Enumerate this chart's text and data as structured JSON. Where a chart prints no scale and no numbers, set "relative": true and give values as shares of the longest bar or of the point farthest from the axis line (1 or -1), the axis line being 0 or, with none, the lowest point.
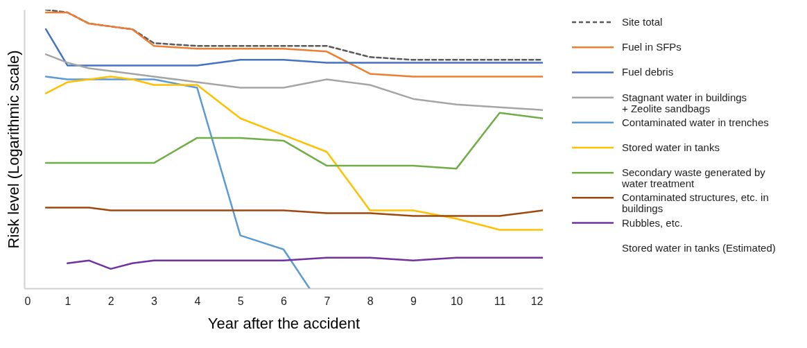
{
  "chart_data": {
    "type": "line",
    "relative": true,
    "xlabel": "Year after the accident",
    "ylabel": "Risk level (Logarithmic scale)",
    "x": [
      0.5,
      1,
      1.5,
      2,
      2.5,
      3,
      4,
      5,
      6,
      7,
      8,
      9,
      10,
      11,
      12
    ],
    "xlim": [
      0,
      12
    ],
    "xticks": [
      0,
      1,
      2,
      3,
      4,
      5,
      6,
      7,
      8,
      9,
      10,
      11,
      12
    ],
    "grid": false,
    "legend": "right",
    "marker": "none",
    "annotations": [
      "Stored water in tanks (Estimated)"
    ],
    "series": [
      {
        "name": "Site total",
        "color": "#595959",
        "line_style": "dashed",
        "values": [
          1.0,
          0.99,
          0.95,
          0.94,
          0.93,
          0.88,
          0.87,
          0.87,
          0.87,
          0.87,
          0.83,
          0.82,
          0.82,
          0.82,
          0.82
        ]
      },
      {
        "name": "Fuel in SFPs",
        "color": "#ed7d31",
        "values": [
          0.99,
          0.99,
          0.95,
          0.94,
          0.93,
          0.87,
          0.86,
          0.86,
          0.86,
          0.85,
          0.77,
          0.76,
          0.76,
          0.76,
          0.76
        ]
      },
      {
        "name": "Fuel debris",
        "color": "#4472c4",
        "values": [
          0.93,
          0.8,
          0.8,
          0.8,
          0.8,
          0.8,
          0.8,
          0.82,
          0.82,
          0.81,
          0.81,
          0.81,
          0.81,
          0.81,
          0.81
        ]
      },
      {
        "name": "Stagnant water in buildings\n+ Zeolite sandbags",
        "color": "#a5a5a5",
        "values": [
          0.84,
          0.81,
          0.79,
          0.78,
          0.77,
          0.76,
          0.74,
          0.72,
          0.72,
          0.75,
          0.73,
          0.68,
          0.66,
          0.65,
          0.64
        ]
      },
      {
        "name": "Contaminated water in trenches",
        "color": "#5b9bd5",
        "x": [
          0.5,
          1,
          2,
          3,
          4,
          5,
          6,
          6.6
        ],
        "values": [
          0.76,
          0.75,
          0.75,
          0.75,
          0.72,
          0.19,
          0.14,
          0
        ]
      },
      {
        "name": "Stored water in tanks",
        "color": "#ffc000",
        "values": [
          0.7,
          0.74,
          0.75,
          0.76,
          0.75,
          0.73,
          0.73,
          0.61,
          0.55,
          0.49,
          0.28,
          0.28,
          0.25,
          0.21,
          0.21
        ]
      },
      {
        "name": "Secondary waste generated by\nwater treatment",
        "color": "#70ad47",
        "values": [
          0.45,
          0.45,
          0.45,
          0.45,
          0.45,
          0.45,
          0.54,
          0.54,
          0.53,
          0.44,
          0.44,
          0.44,
          0.43,
          0.63,
          0.61
        ]
      },
      {
        "name": "Contaminated structures, etc. in\nbuildings",
        "color": "#9e480e",
        "values": [
          0.29,
          0.29,
          0.29,
          0.28,
          0.28,
          0.28,
          0.28,
          0.28,
          0.28,
          0.27,
          0.27,
          0.26,
          0.26,
          0.26,
          0.28
        ]
      },
      {
        "name": "Rubbles, etc.",
        "color": "#7030a0",
        "values": [
          null,
          0.09,
          0.1,
          0.07,
          0.09,
          0.1,
          0.1,
          0.1,
          0.1,
          0.11,
          0.11,
          0.1,
          0.11,
          0.11,
          0.11
        ]
      }
    ]
  }
}
